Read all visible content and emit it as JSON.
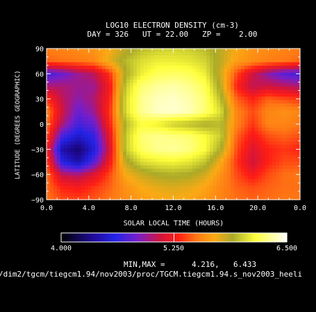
{
  "chart_data": {
    "type": "heatmap",
    "title": "LOG10 ELECTRON DENSITY (cm-3)",
    "subtitle": "DAY = 326   UT = 22.00   ZP =    2.00",
    "xlabel": "SOLAR LOCAL TIME (HOURS)",
    "ylabel": "LATITUDE (DEGREES GEOGRAPHIC)",
    "x_ticks": [
      "0.0",
      "4.0",
      "8.0",
      "12.0",
      "16.0",
      "20.0",
      "0.0"
    ],
    "y_ticks": [
      "90",
      "60",
      "30",
      "0",
      "-30",
      "-60",
      "-90"
    ],
    "xlim": [
      0,
      24
    ],
    "ylim": [
      -90,
      90
    ],
    "colorbar": {
      "min": "4.000",
      "mid": "5.250",
      "max": "6.500",
      "range": [
        4.0,
        6.5
      ]
    },
    "minmax_label": "MIN,MAX =",
    "min_value": "4.216,",
    "max_value": "6.433",
    "file_path": "/dim2/tgcm/tiegcm1.94/nov2003/proc/TGCM.tiegcm1.94.s_nov2003_heeli",
    "grid": false,
    "field_x": [
      0,
      1.5,
      3,
      4.5,
      6,
      7.5,
      9,
      10.5,
      12,
      13.5,
      15,
      16.5,
      18,
      19.5,
      21,
      22.5,
      24
    ],
    "field_y": [
      90,
      75,
      60,
      45,
      30,
      15,
      0,
      -15,
      -30,
      -45,
      -60,
      -75,
      -90
    ],
    "field_values": [
      [
        5.52,
        5.55,
        5.58,
        5.62,
        5.7,
        5.85,
        5.95,
        6.0,
        6.02,
        6.0,
        5.95,
        5.85,
        5.7,
        5.62,
        5.58,
        5.55,
        5.52
      ],
      [
        5.45,
        5.48,
        5.5,
        5.55,
        5.75,
        5.95,
        6.05,
        6.1,
        6.1,
        6.08,
        6.02,
        5.85,
        5.65,
        5.58,
        5.52,
        5.5,
        5.45
      ],
      [
        4.7,
        4.8,
        4.95,
        5.05,
        5.35,
        5.9,
        6.1,
        6.2,
        6.22,
        6.2,
        6.1,
        5.8,
        5.4,
        5.1,
        4.9,
        4.75,
        4.7
      ],
      [
        5.0,
        5.0,
        4.95,
        4.95,
        5.25,
        6.0,
        6.25,
        6.32,
        6.35,
        6.3,
        6.2,
        5.85,
        5.3,
        5.05,
        5.1,
        5.05,
        5.0
      ],
      [
        5.35,
        5.05,
        4.9,
        5.0,
        5.3,
        6.05,
        6.3,
        6.38,
        6.4,
        6.35,
        6.25,
        5.95,
        5.45,
        5.3,
        5.45,
        5.4,
        5.35
      ],
      [
        5.55,
        5.1,
        4.8,
        4.95,
        5.35,
        6.05,
        6.3,
        6.4,
        6.42,
        6.38,
        6.25,
        6.05,
        5.55,
        5.4,
        5.55,
        5.6,
        5.55
      ],
      [
        5.5,
        5.0,
        4.7,
        4.8,
        5.3,
        5.95,
        6.15,
        6.1,
        6.0,
        5.95,
        5.9,
        5.95,
        5.55,
        5.35,
        5.55,
        5.55,
        5.5
      ],
      [
        5.4,
        4.7,
        4.5,
        4.65,
        5.2,
        6.0,
        6.25,
        6.3,
        6.28,
        6.25,
        6.15,
        6.0,
        5.45,
        5.25,
        5.4,
        5.45,
        5.4
      ],
      [
        5.3,
        4.4,
        4.25,
        4.55,
        5.15,
        6.0,
        6.22,
        6.3,
        6.32,
        6.28,
        6.15,
        5.9,
        5.4,
        5.15,
        5.3,
        5.35,
        5.3
      ],
      [
        5.4,
        4.6,
        4.4,
        4.75,
        5.25,
        5.85,
        6.05,
        6.1,
        6.12,
        6.08,
        5.98,
        5.7,
        5.35,
        5.1,
        5.3,
        5.4,
        5.4
      ],
      [
        5.5,
        5.05,
        5.0,
        5.15,
        5.4,
        5.7,
        5.82,
        5.9,
        5.92,
        5.9,
        5.8,
        5.6,
        5.4,
        5.25,
        5.4,
        5.48,
        5.5
      ],
      [
        5.48,
        5.3,
        5.25,
        5.35,
        5.45,
        5.6,
        5.7,
        5.75,
        5.78,
        5.75,
        5.68,
        5.55,
        5.45,
        5.4,
        5.45,
        5.48,
        5.48
      ],
      [
        5.5,
        5.4,
        5.38,
        5.42,
        5.5,
        5.58,
        5.64,
        5.68,
        5.7,
        5.68,
        5.62,
        5.55,
        5.48,
        5.45,
        5.48,
        5.5,
        5.5
      ]
    ]
  }
}
